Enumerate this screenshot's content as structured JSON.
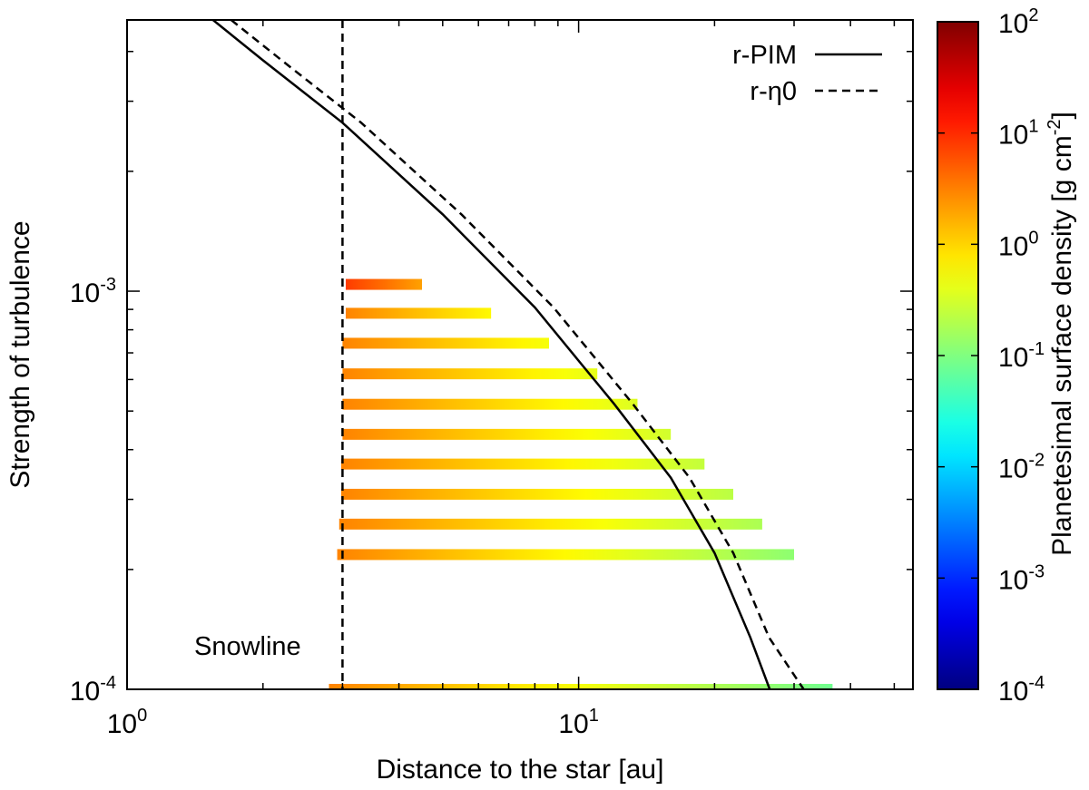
{
  "chart_data": {
    "type": "line",
    "title": "",
    "xlabel": "Distance to the star [au]",
    "ylabel": "Strength of turbulence",
    "xscale": "log",
    "yscale": "log",
    "xlim": [
      1,
      55
    ],
    "ylim": [
      0.0001,
      0.0048
    ],
    "grid": false,
    "legend_position": "top-right",
    "x_ticks": [
      {
        "base": "10",
        "exp": "0",
        "value": 1
      },
      {
        "base": "10",
        "exp": "1",
        "value": 10
      }
    ],
    "y_ticks": [
      {
        "base": "10",
        "exp": "-4",
        "value": 0.0001
      },
      {
        "base": "10",
        "exp": "-3",
        "value": 0.001
      }
    ],
    "series": [
      {
        "name": "r-PIM",
        "style": "solid",
        "points": [
          [
            1.55,
            0.0048
          ],
          [
            2.0,
            0.0038
          ],
          [
            3.0,
            0.00265
          ],
          [
            5.0,
            0.00156
          ],
          [
            8.0,
            0.00091
          ],
          [
            12.0,
            0.00052
          ],
          [
            16.0,
            0.00034
          ],
          [
            20.0,
            0.00022
          ],
          [
            24.0,
            0.000135
          ],
          [
            26.5,
            0.0001
          ]
        ]
      },
      {
        "name": "r-η0",
        "style": "dashed",
        "points": [
          [
            1.7,
            0.0048
          ],
          [
            2.2,
            0.0038
          ],
          [
            3.3,
            0.00265
          ],
          [
            5.5,
            0.00156
          ],
          [
            8.8,
            0.00091
          ],
          [
            13.2,
            0.00052
          ],
          [
            17.6,
            0.00034
          ],
          [
            22.0,
            0.00022
          ],
          [
            26.4,
            0.000135
          ],
          [
            31.5,
            0.0001
          ]
        ]
      }
    ],
    "snowline": {
      "x": 3.0,
      "label": "Snowline"
    },
    "bars": [
      {
        "alpha": 0.00104,
        "r_start": 3.05,
        "r_end": 4.5,
        "sigma_start": 8.0,
        "sigma_end": 2.0
      },
      {
        "alpha": 0.00088,
        "r_start": 3.05,
        "r_end": 6.4,
        "sigma_start": 3.0,
        "sigma_end": 0.6
      },
      {
        "alpha": 0.00074,
        "r_start": 3.0,
        "r_end": 8.6,
        "sigma_start": 3.0,
        "sigma_end": 0.5
      },
      {
        "alpha": 0.00062,
        "r_start": 3.0,
        "r_end": 11.0,
        "sigma_start": 3.0,
        "sigma_end": 0.4
      },
      {
        "alpha": 0.00052,
        "r_start": 3.0,
        "r_end": 13.5,
        "sigma_start": 3.0,
        "sigma_end": 0.35
      },
      {
        "alpha": 0.000437,
        "r_start": 3.0,
        "r_end": 16.0,
        "sigma_start": 3.0,
        "sigma_end": 0.3
      },
      {
        "alpha": 0.000368,
        "r_start": 2.98,
        "r_end": 19.0,
        "sigma_start": 3.0,
        "sigma_end": 0.25
      },
      {
        "alpha": 0.000309,
        "r_start": 2.98,
        "r_end": 22.0,
        "sigma_start": 3.0,
        "sigma_end": 0.22
      },
      {
        "alpha": 0.00026,
        "r_start": 2.95,
        "r_end": 25.5,
        "sigma_start": 3.0,
        "sigma_end": 0.18
      },
      {
        "alpha": 0.000218,
        "r_start": 2.92,
        "r_end": 30.0,
        "sigma_start": 3.0,
        "sigma_end": 0.12
      },
      {
        "alpha": 0.0001,
        "r_start": 2.8,
        "r_end": 36.5,
        "sigma_start": 3.0,
        "sigma_end": 0.08
      }
    ],
    "colorbar": {
      "label": "Planetesimal surface density [g cm",
      "label_exp": "-2",
      "label_close": "]",
      "scale": "log",
      "range": [
        0.0001,
        100
      ],
      "colormap": "jet",
      "ticks": [
        {
          "base": "10",
          "exp": "2",
          "value": 100
        },
        {
          "base": "10",
          "exp": "1",
          "value": 10
        },
        {
          "base": "10",
          "exp": "0",
          "value": 1
        },
        {
          "base": "10",
          "exp": "-1",
          "value": 0.1
        },
        {
          "base": "10",
          "exp": "-2",
          "value": 0.01
        },
        {
          "base": "10",
          "exp": "-3",
          "value": 0.001
        },
        {
          "base": "10",
          "exp": "-4",
          "value": 0.0001
        }
      ]
    }
  }
}
